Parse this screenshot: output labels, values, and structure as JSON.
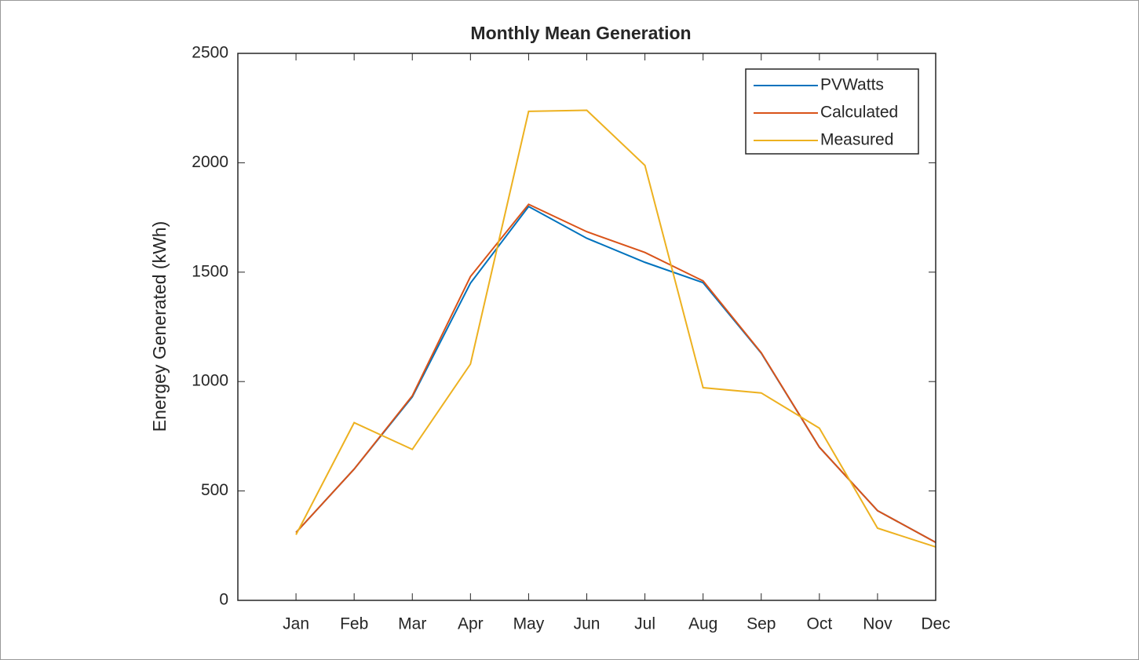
{
  "chart_data": {
    "type": "line",
    "title": "Monthly Mean Generation",
    "y_label": "Energey Generated (kWh)",
    "categories": [
      "Jan",
      "Feb",
      "Mar",
      "Apr",
      "May",
      "Jun",
      "Jul",
      "Aug",
      "Sep",
      "Oct",
      "Nov",
      "Dec"
    ],
    "series": [
      {
        "name": "PVWatts",
        "color": "#0072bd",
        "values": [
          310,
          600,
          930,
          1450,
          1800,
          1655,
          1545,
          1452,
          1130,
          700,
          410,
          265
        ]
      },
      {
        "name": "Calculated",
        "color": "#d95319",
        "values": [
          310,
          600,
          935,
          1480,
          1810,
          1685,
          1590,
          1460,
          1132,
          700,
          410,
          265
        ]
      },
      {
        "name": "Measured",
        "color": "#edb120",
        "values": [
          300,
          812,
          690,
          1080,
          2235,
          2240,
          1988,
          972,
          948,
          787,
          330,
          244
        ]
      }
    ],
    "ylim": [
      0,
      2500
    ],
    "yticks": [
      0,
      500,
      1000,
      1500,
      2000,
      2500
    ],
    "legend": "upper right"
  }
}
